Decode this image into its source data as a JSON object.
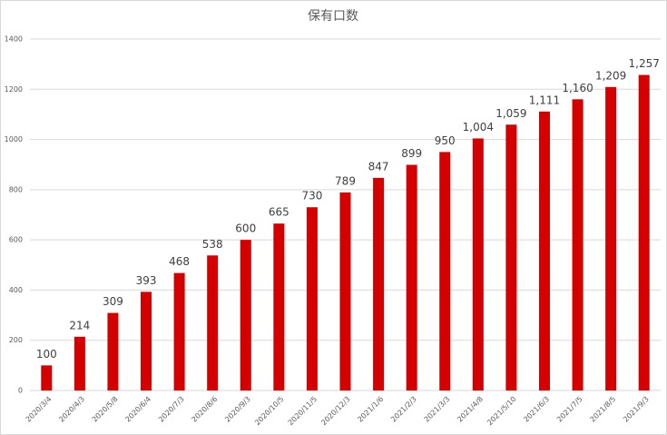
{
  "chart_data": {
    "type": "bar",
    "title": "保有口数",
    "categories": [
      "2020/3/4",
      "2020/4/3",
      "2020/5/8",
      "2020/6/4",
      "2020/7/3",
      "2020/8/6",
      "2020/9/3",
      "2020/10/5",
      "2020/11/5",
      "2020/12/3",
      "2021/1/6",
      "2021/2/3",
      "2021/3/3",
      "2021/4/8",
      "2021/5/10",
      "2021/6/3",
      "2021/7/5",
      "2021/8/5",
      "2021/9/3"
    ],
    "values": [
      100,
      214,
      309,
      393,
      468,
      538,
      600,
      665,
      730,
      789,
      847,
      899,
      950,
      1004,
      1059,
      1111,
      1160,
      1209,
      1257
    ],
    "value_labels": [
      "100",
      "214",
      "309",
      "393",
      "468",
      "538",
      "600",
      "665",
      "730",
      "789",
      "847",
      "899",
      "950",
      "1,004",
      "1,059",
      "1,111",
      "1,160",
      "1,209",
      "1,257"
    ],
    "color": "#d40000",
    "ylim": [
      0,
      1400
    ],
    "yticks": [
      0,
      200,
      400,
      600,
      800,
      1000,
      1200,
      1400
    ],
    "grid": true
  }
}
